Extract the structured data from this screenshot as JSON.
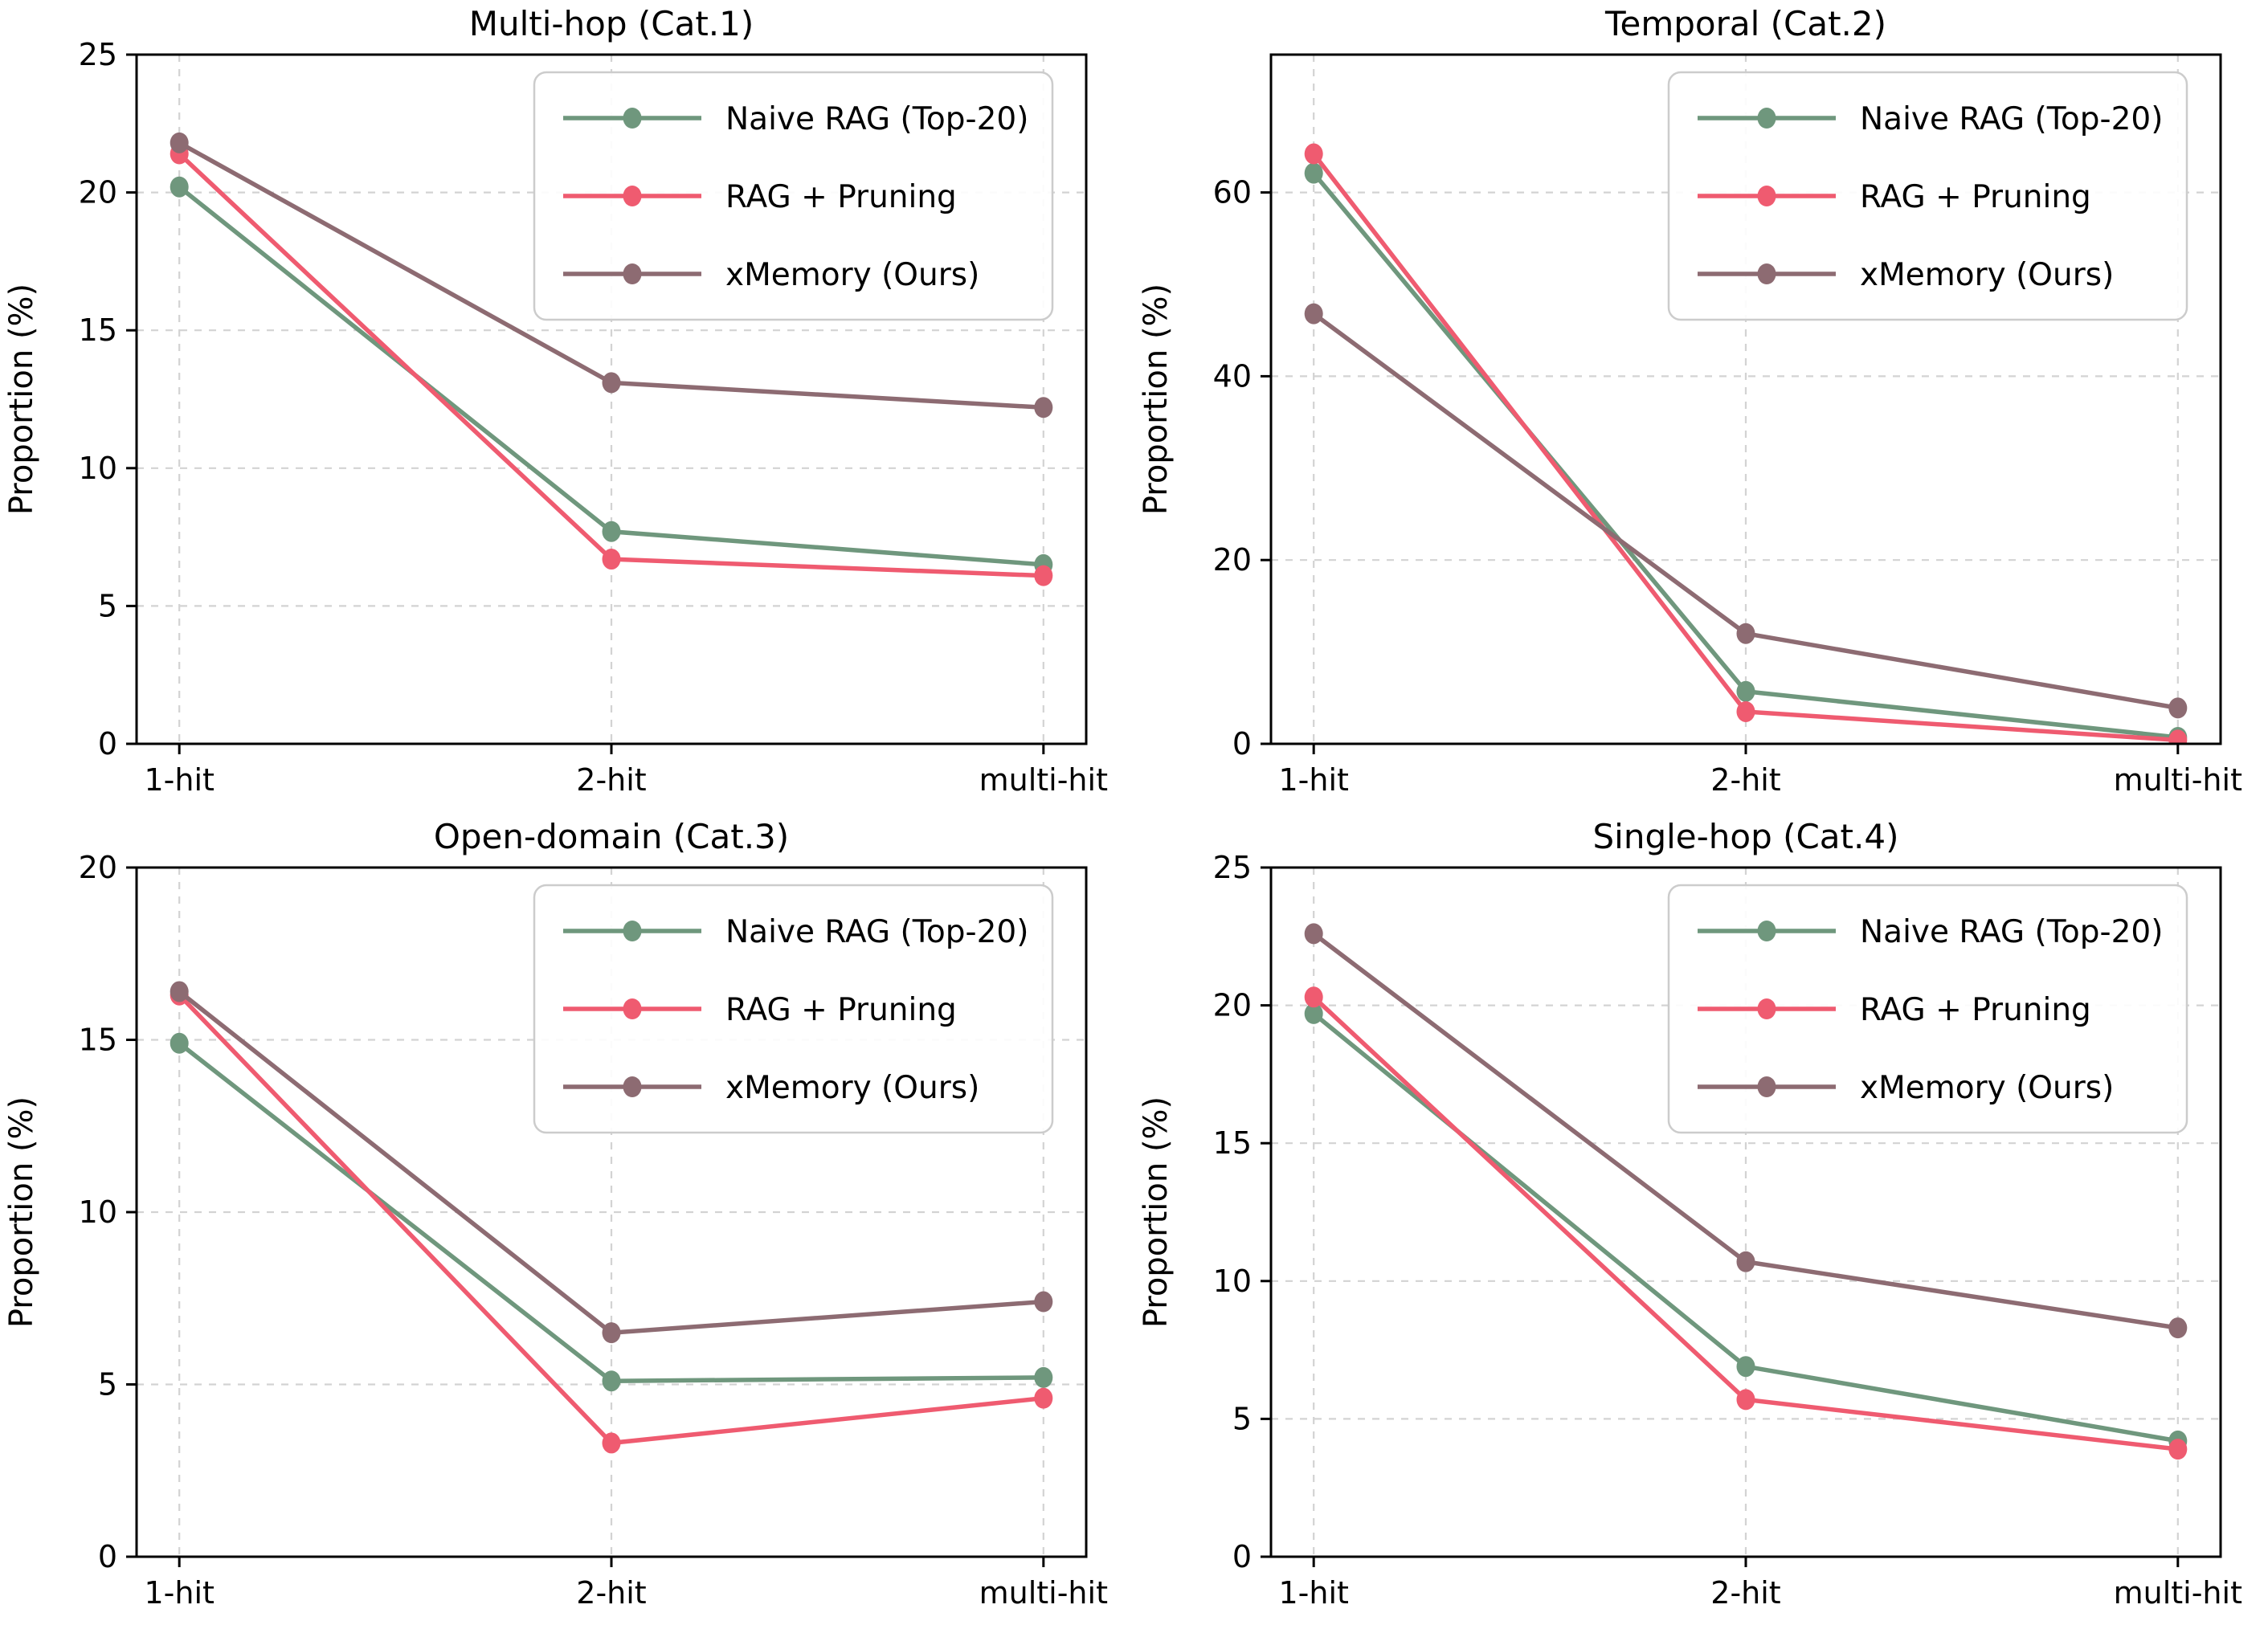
{
  "figure": {
    "background": "#ffffff",
    "colors": {
      "grid": "#d3d3d3",
      "axis": "#000000",
      "legend_border": "#cccccc",
      "legend_fill": "#ffffff"
    }
  },
  "legend": {
    "position": "upper right",
    "items": [
      {
        "label": "Naive RAG (Top-20)",
        "color": "#6f977d"
      },
      {
        "label": "RAG + Pruning",
        "color": "#ef5b70"
      },
      {
        "label": "xMemory (Ours)",
        "color": "#8d6b72"
      }
    ]
  },
  "chart_data": [
    {
      "type": "line",
      "title": "Multi-hop (Cat.1)",
      "ylabel": "Proportion (%)",
      "xlabel": "",
      "categories": [
        "1-hit",
        "2-hit",
        "multi-hit"
      ],
      "yticks": [
        0,
        5,
        10,
        15,
        20,
        25
      ],
      "ylim": [
        0,
        25
      ],
      "grid": true,
      "legend_position": "upper right",
      "series": [
        {
          "name": "Naive RAG (Top-20)",
          "color": "#6f977d",
          "values": [
            20.2,
            7.7,
            6.5
          ]
        },
        {
          "name": "RAG + Pruning",
          "color": "#ef5b70",
          "values": [
            21.4,
            6.7,
            6.1
          ]
        },
        {
          "name": "xMemory (Ours)",
          "color": "#8d6b72",
          "values": [
            21.8,
            13.1,
            12.2
          ]
        }
      ]
    },
    {
      "type": "line",
      "title": "Temporal (Cat.2)",
      "ylabel": "Proportion (%)",
      "xlabel": "",
      "categories": [
        "1-hit",
        "2-hit",
        "multi-hit"
      ],
      "yticks": [
        0,
        20,
        40,
        60
      ],
      "ylim": [
        0,
        75
      ],
      "grid": true,
      "legend_position": "upper right",
      "series": [
        {
          "name": "Naive RAG (Top-20)",
          "color": "#6f977d",
          "values": [
            62.1,
            5.7,
            0.7
          ]
        },
        {
          "name": "RAG + Pruning",
          "color": "#ef5b70",
          "values": [
            64.2,
            3.5,
            0.4
          ]
        },
        {
          "name": "xMemory (Ours)",
          "color": "#8d6b72",
          "values": [
            46.8,
            12.0,
            3.9
          ]
        }
      ]
    },
    {
      "type": "line",
      "title": "Open-domain (Cat.3)",
      "ylabel": "Proportion (%)",
      "xlabel": "",
      "categories": [
        "1-hit",
        "2-hit",
        "multi-hit"
      ],
      "yticks": [
        0,
        5,
        10,
        15,
        20
      ],
      "ylim": [
        0,
        20
      ],
      "grid": true,
      "legend_position": "upper right",
      "series": [
        {
          "name": "Naive RAG (Top-20)",
          "color": "#6f977d",
          "values": [
            14.9,
            5.1,
            5.2
          ]
        },
        {
          "name": "RAG + Pruning",
          "color": "#ef5b70",
          "values": [
            16.3,
            3.3,
            4.6
          ]
        },
        {
          "name": "xMemory (Ours)",
          "color": "#8d6b72",
          "values": [
            16.4,
            6.5,
            7.4
          ]
        }
      ]
    },
    {
      "type": "line",
      "title": "Single-hop (Cat.4)",
      "ylabel": "Proportion (%)",
      "xlabel": "",
      "categories": [
        "1-hit",
        "2-hit",
        "multi-hit"
      ],
      "yticks": [
        0,
        5,
        10,
        15,
        20,
        25
      ],
      "ylim": [
        0,
        25
      ],
      "grid": true,
      "legend_position": "upper right",
      "series": [
        {
          "name": "Naive RAG (Top-20)",
          "color": "#6f977d",
          "values": [
            19.7,
            6.9,
            4.2
          ]
        },
        {
          "name": "RAG + Pruning",
          "color": "#ef5b70",
          "values": [
            20.3,
            5.7,
            3.9
          ]
        },
        {
          "name": "xMemory (Ours)",
          "color": "#8d6b72",
          "values": [
            22.6,
            10.7,
            8.3
          ]
        }
      ]
    }
  ]
}
